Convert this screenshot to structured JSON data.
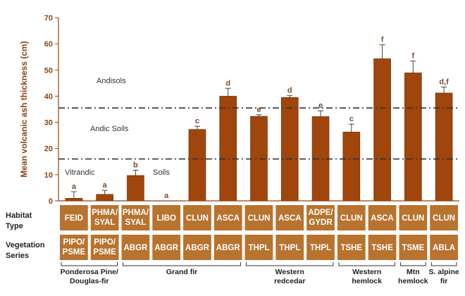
{
  "chart_data": {
    "type": "bar",
    "ylabel": "Mean volcanic ash thickness (cm)",
    "ylim": [
      0,
      70
    ],
    "yticks": [
      0,
      10,
      20,
      30,
      40,
      50,
      60,
      70
    ],
    "bar_color": "#a0450b",
    "cell_color": "#b8732f",
    "row_labels": [
      "Habitat Type",
      "Vegetation Series"
    ],
    "zones": [
      {
        "label": "Andisols"
      },
      {
        "label": "Andic Soils"
      },
      {
        "label": "Vitrandic"
      },
      {
        "label": "Soils"
      }
    ],
    "thresholds": [
      {
        "value": 35.5,
        "style": "dash-dot"
      },
      {
        "value": 16,
        "style": "dash-dot"
      }
    ],
    "bars": [
      {
        "habitat": "FEID",
        "series": "PIPO/ PSME",
        "value": 1,
        "error": 2.5,
        "letter": "a"
      },
      {
        "habitat": "PHMA/ SYAL",
        "series": "PIPO/ PSME",
        "value": 2.5,
        "error": 1.5,
        "letter": "a"
      },
      {
        "habitat": "PHMA/ SYAL",
        "series": "ABGR",
        "value": 9.7,
        "error": 2,
        "letter": "b"
      },
      {
        "habitat": "LIBO",
        "series": "ABGR",
        "value": 0,
        "error": 0,
        "letter": "a"
      },
      {
        "habitat": "CLUN",
        "series": "ABGR",
        "value": 27.3,
        "error": 1.2,
        "letter": "c"
      },
      {
        "habitat": "ASCA",
        "series": "ABGR",
        "value": 40,
        "error": 3,
        "letter": "d"
      },
      {
        "habitat": "CLUN",
        "series": "THPL",
        "value": 32.3,
        "error": 0.6,
        "letter": "e"
      },
      {
        "habitat": "ASCA",
        "series": "THPL",
        "value": 39.5,
        "error": 0.7,
        "letter": "d"
      },
      {
        "habitat": "ADPE/ GYDR",
        "series": "THPL",
        "value": 32.2,
        "error": 2.2,
        "letter": "e"
      },
      {
        "habitat": "CLUN",
        "series": "TSHE",
        "value": 26.3,
        "error": 3,
        "letter": "c"
      },
      {
        "habitat": "ASCA",
        "series": "TSHE",
        "value": 54.3,
        "error": 5.3,
        "letter": "f"
      },
      {
        "habitat": "CLUN",
        "series": "TSME",
        "value": 48.9,
        "error": 4.5,
        "letter": "f"
      },
      {
        "habitat": "CLUN",
        "series": "ABLA",
        "value": 41.2,
        "error": 2.3,
        "letter": "d,f"
      }
    ],
    "groups": [
      {
        "name": "Ponderosa Pine/ Douglas-fir",
        "from": 0,
        "to": 1
      },
      {
        "name": "Grand fir",
        "from": 2,
        "to": 5
      },
      {
        "name": "Western redcedar",
        "from": 6,
        "to": 8
      },
      {
        "name": "Western hemlock",
        "from": 9,
        "to": 10
      },
      {
        "name": "Mtn hemlock",
        "from": 11,
        "to": 11
      },
      {
        "name": "S. alpine fir",
        "from": 12,
        "to": 12
      }
    ]
  }
}
